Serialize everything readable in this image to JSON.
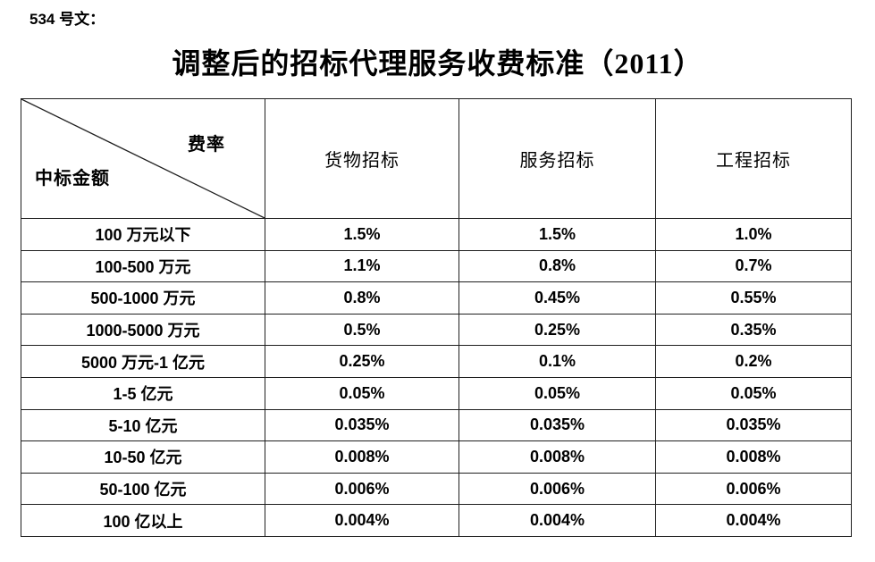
{
  "doc_label": "534 号文：",
  "title": "调整后的招标代理服务收费标准（2011）",
  "colors": {
    "background": "#ffffff",
    "text": "#000000",
    "border": "#1f1f1f"
  },
  "table": {
    "corner": {
      "top_right": "费率",
      "bottom_left": "中标金额"
    },
    "columns": [
      "货物招标",
      "服务招标",
      "工程招标"
    ],
    "rows": [
      {
        "amount": "100 万元以下",
        "values": [
          "1.5%",
          "1.5%",
          "1.0%"
        ]
      },
      {
        "amount": "100-500 万元",
        "values": [
          "1.1%",
          "0.8%",
          "0.7%"
        ]
      },
      {
        "amount": "500-1000 万元",
        "values": [
          "0.8%",
          "0.45%",
          "0.55%"
        ]
      },
      {
        "amount": "1000-5000 万元",
        "values": [
          "0.5%",
          "0.25%",
          "0.35%"
        ]
      },
      {
        "amount": "5000 万元-1 亿元",
        "values": [
          "0.25%",
          "0.1%",
          "0.2%"
        ]
      },
      {
        "amount": "1-5 亿元",
        "values": [
          "0.05%",
          "0.05%",
          "0.05%"
        ]
      },
      {
        "amount": "5-10 亿元",
        "values": [
          "0.035%",
          "0.035%",
          "0.035%"
        ]
      },
      {
        "amount": "10-50 亿元",
        "values": [
          "0.008%",
          "0.008%",
          "0.008%"
        ]
      },
      {
        "amount": "50-100 亿元",
        "values": [
          "0.006%",
          "0.006%",
          "0.006%"
        ]
      },
      {
        "amount": "100 亿以上",
        "values": [
          "0.004%",
          "0.004%",
          "0.004%"
        ]
      }
    ]
  }
}
